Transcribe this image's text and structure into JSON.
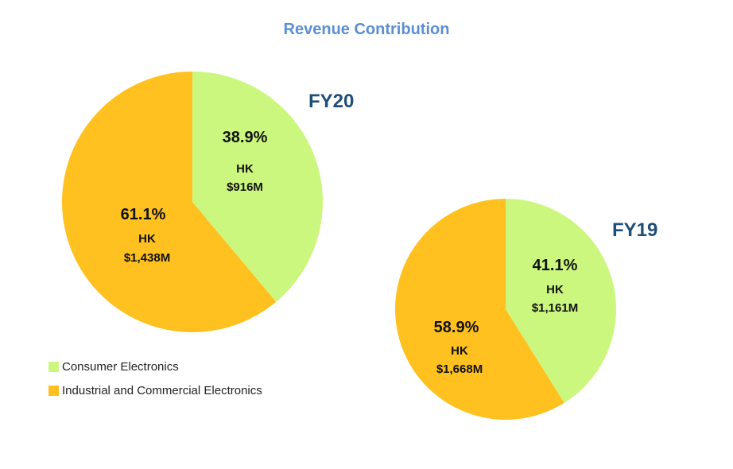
{
  "colors": {
    "consumer": "#ccf77f",
    "industrial": "#ffc11f",
    "title": "#5b8fd1",
    "year": "#1f4e79"
  },
  "chart_data": {
    "type": "pie",
    "title": "Revenue Contribution",
    "legend": [
      {
        "name": "Consumer Electronics",
        "color": "#ccf77f"
      },
      {
        "name": "Industrial and Commercial Electronics",
        "color": "#ffc11f"
      }
    ],
    "pies": [
      {
        "label": "FY20",
        "slices": [
          {
            "name": "Consumer Electronics",
            "percent": 38.9,
            "pct_label": "38.9%",
            "hk_label": "HK",
            "value_label": "$916M",
            "value_m": 916,
            "color": "#ccf77f"
          },
          {
            "name": "Industrial and Commercial Electronics",
            "percent": 61.1,
            "pct_label": "61.1%",
            "hk_label": "HK",
            "value_label": "$1,438M",
            "value_m": 1438,
            "color": "#ffc11f"
          }
        ]
      },
      {
        "label": "FY19",
        "slices": [
          {
            "name": "Consumer Electronics",
            "percent": 41.1,
            "pct_label": "41.1%",
            "hk_label": "HK",
            "value_label": "$1,161M",
            "value_m": 1161,
            "color": "#ccf77f"
          },
          {
            "name": "Industrial and Commercial Electronics",
            "percent": 58.9,
            "pct_label": "58.9%",
            "hk_label": "HK",
            "value_label": "$1,668M",
            "value_m": 1668,
            "color": "#ffc11f"
          }
        ]
      }
    ]
  }
}
